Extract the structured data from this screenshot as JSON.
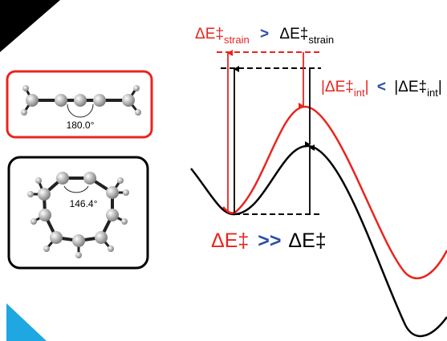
{
  "top_label": {
    "left": {
      "symbol": "ΔE‡",
      "subscript": "strain"
    },
    "relation": ">",
    "right": {
      "symbol": "ΔE‡",
      "subscript": "strain"
    }
  },
  "middle_label": {
    "left": {
      "symbol": "|ΔE‡",
      "subscript": "int",
      "suffix": "|"
    },
    "relation": "<",
    "right": {
      "symbol": "|ΔE‡",
      "subscript": "int",
      "suffix": "|"
    }
  },
  "bottom_label": {
    "left": "ΔE‡",
    "relation": ">>",
    "right": "ΔE‡"
  },
  "structures": [
    {
      "angle": "180.0°"
    },
    {
      "angle": "146.4°"
    }
  ]
}
